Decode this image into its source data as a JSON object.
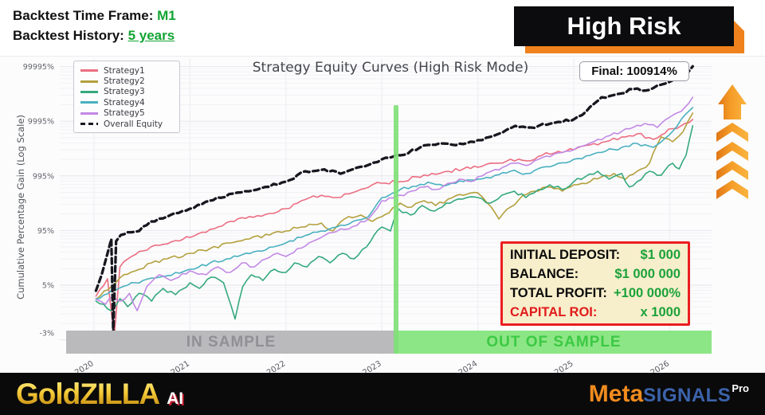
{
  "header": {
    "timeframe_label": "Backtest Time Frame:",
    "timeframe_value": "M1",
    "history_label": "Backtest History:",
    "history_value": "5 years"
  },
  "banner": {
    "text": "High Risk"
  },
  "annotation": {
    "final_label": "Final: 100914%"
  },
  "bands": {
    "in_sample": "IN SAMPLE",
    "out_sample": "OUT OF SAMPLE"
  },
  "info_box": {
    "rows": [
      {
        "label": "INITIAL DEPOSIT:",
        "value": "$1 000",
        "label_style": "black"
      },
      {
        "label": "BALANCE:",
        "value": "$1 000 000",
        "label_style": "black"
      },
      {
        "label": "TOTAL PROFIT:",
        "value": "+100 000%",
        "label_style": "black"
      },
      {
        "label": "CAPITAL ROI:",
        "value": "x 1000",
        "label_style": "red"
      }
    ]
  },
  "footer": {
    "brand_gold": "GoldZILLA",
    "brand_ai": "AI",
    "meta_part1": "Meta",
    "meta_part2": "SIGNALS",
    "meta_part3": "Pro"
  },
  "colors": {
    "accent_orange": "#ef821c",
    "accent_green": "#12a433",
    "band_green": "#8de685",
    "band_gray": "#bababd",
    "info_border_red": "#ea1d22",
    "info_bg_cream": "#f7eecb"
  },
  "chart_data": {
    "type": "line",
    "title": "Strategy Equity Curves (High Risk Mode)",
    "ylabel": "Cumulative Percentage Gain (Log Scale)",
    "xlabel": "",
    "grid": true,
    "legend_position": "top-left",
    "x_range": [
      2019.65,
      2026.45
    ],
    "x_ticks": [
      2020,
      2021,
      2022,
      2023,
      2024,
      2025,
      2026
    ],
    "y_scale": "log(pct_gain + 5)",
    "y_ticks": [
      {
        "label": "99995%",
        "value": 99995
      },
      {
        "label": "9995%",
        "value": 9995
      },
      {
        "label": "995%",
        "value": 995
      },
      {
        "label": "95%",
        "value": 95
      },
      {
        "label": "5%",
        "value": 5
      },
      {
        "label": "-3%",
        "value": -3
      }
    ],
    "sample_split_year": 2023.15,
    "final_value_pct": 100914,
    "series": [
      {
        "name": "Strategy1",
        "color": "#ec6e81",
        "dash": false,
        "points": [
          [
            2020.02,
            1.3
          ],
          [
            2020.14,
            8.1
          ],
          [
            2020.21,
            -3.9
          ],
          [
            2020.27,
            16.6
          ],
          [
            2020.39,
            28.5
          ],
          [
            2020.51,
            37.4
          ],
          [
            2020.68,
            48.6
          ],
          [
            2020.85,
            60.5
          ],
          [
            2021,
            70
          ],
          [
            2021.21,
            100
          ],
          [
            2021.42,
            142
          ],
          [
            2021.62,
            175
          ],
          [
            2021.83,
            200
          ],
          [
            2022,
            246
          ],
          [
            2022.16,
            346
          ],
          [
            2022.37,
            438
          ],
          [
            2022.53,
            396
          ],
          [
            2022.74,
            520
          ],
          [
            2022.9,
            682
          ],
          [
            2023,
            730
          ],
          [
            2023.19,
            780
          ],
          [
            2023.36,
            960
          ],
          [
            2023.52,
            1100
          ],
          [
            2023.69,
            1210
          ],
          [
            2023.85,
            1340
          ],
          [
            2024,
            1430
          ],
          [
            2024.18,
            1700
          ],
          [
            2024.34,
            2010
          ],
          [
            2024.51,
            1880
          ],
          [
            2024.67,
            2370
          ],
          [
            2024.84,
            2810
          ],
          [
            2025,
            3000
          ],
          [
            2025.17,
            3680
          ],
          [
            2025.33,
            4210
          ],
          [
            2025.5,
            5150
          ],
          [
            2025.66,
            5890
          ],
          [
            2025.83,
            4650
          ],
          [
            2025.99,
            7200
          ],
          [
            2026.12,
            8240
          ],
          [
            2026.24,
            10800
          ]
        ]
      },
      {
        "name": "Strategy2",
        "color": "#b3a03d",
        "dash": false,
        "points": [
          [
            2020.03,
            0.65
          ],
          [
            2020.18,
            4.4
          ],
          [
            2020.31,
            10.5
          ],
          [
            2020.43,
            13.3
          ],
          [
            2020.6,
            20.6
          ],
          [
            2020.76,
            25.3
          ],
          [
            2021,
            33.3
          ],
          [
            2021.21,
            41.8
          ],
          [
            2021.42,
            54.2
          ],
          [
            2021.62,
            65
          ],
          [
            2021.83,
            77.8
          ],
          [
            2022,
            93
          ],
          [
            2022.16,
            111
          ],
          [
            2022.37,
            132
          ],
          [
            2022.49,
            93
          ],
          [
            2022.61,
            157
          ],
          [
            2022.78,
            187
          ],
          [
            2022.9,
            142
          ],
          [
            2023,
            175
          ],
          [
            2023.19,
            312
          ],
          [
            2023.31,
            263
          ],
          [
            2023.44,
            346
          ],
          [
            2023.56,
            282
          ],
          [
            2023.69,
            370
          ],
          [
            2023.85,
            438
          ],
          [
            2024,
            485
          ],
          [
            2024.1,
            312
          ],
          [
            2024.22,
            157
          ],
          [
            2024.34,
            263
          ],
          [
            2024.47,
            438
          ],
          [
            2024.59,
            520
          ],
          [
            2024.76,
            620
          ],
          [
            2024.88,
            520
          ],
          [
            2025,
            682
          ],
          [
            2025.17,
            780
          ],
          [
            2025.29,
            960
          ],
          [
            2025.42,
            1100
          ],
          [
            2025.54,
            865
          ],
          [
            2025.66,
            1210
          ],
          [
            2025.79,
            1700
          ],
          [
            2025.91,
            5150
          ],
          [
            2026.03,
            4210
          ],
          [
            2026.14,
            6510
          ],
          [
            2026.24,
            14100
          ]
        ]
      },
      {
        "name": "Strategy3",
        "color": "#35a97c",
        "dash": false,
        "points": [
          [
            2020.02,
            0.11
          ],
          [
            2020.18,
            -1.59
          ],
          [
            2020.27,
            0.65
          ],
          [
            2020.35,
            -0.96
          ],
          [
            2020.47,
            2.1
          ],
          [
            2020.6,
            0.11
          ],
          [
            2020.72,
            3.7
          ],
          [
            2020.85,
            1.7
          ],
          [
            2021,
            6.1
          ],
          [
            2021.1,
            3.7
          ],
          [
            2021.22,
            9
          ],
          [
            2021.35,
            6.1
          ],
          [
            2021.47,
            -2.6
          ],
          [
            2021.55,
            4.4
          ],
          [
            2021.64,
            10.5
          ],
          [
            2021.76,
            7.2
          ],
          [
            2021.88,
            14.6
          ],
          [
            2022,
            12.1
          ],
          [
            2022.09,
            20.6
          ],
          [
            2022.22,
            16.6
          ],
          [
            2022.34,
            28.5
          ],
          [
            2022.46,
            20.6
          ],
          [
            2022.59,
            33.3
          ],
          [
            2022.71,
            25.3
          ],
          [
            2022.84,
            45.1
          ],
          [
            2022.92,
            77.8
          ],
          [
            2023,
            111
          ],
          [
            2023.09,
            93
          ],
          [
            2023.17,
            246
          ],
          [
            2023.3,
            187
          ],
          [
            2023.42,
            282
          ],
          [
            2023.55,
            222
          ],
          [
            2023.67,
            312
          ],
          [
            2023.84,
            370
          ],
          [
            2024,
            396
          ],
          [
            2024.13,
            312
          ],
          [
            2024.25,
            438
          ],
          [
            2024.38,
            520
          ],
          [
            2024.5,
            396
          ],
          [
            2024.63,
            557
          ],
          [
            2024.75,
            682
          ],
          [
            2024.88,
            557
          ],
          [
            2025,
            780
          ],
          [
            2025.12,
            960
          ],
          [
            2025.25,
            1210
          ],
          [
            2025.37,
            865
          ],
          [
            2025.5,
            1100
          ],
          [
            2025.58,
            620
          ],
          [
            2025.66,
            780
          ],
          [
            2025.79,
            1210
          ],
          [
            2025.91,
            1020
          ],
          [
            2026.03,
            1700
          ],
          [
            2026.1,
            1340
          ],
          [
            2026.17,
            2370
          ],
          [
            2026.24,
            8240
          ]
        ]
      },
      {
        "name": "Strategy4",
        "color": "#49b0bf",
        "dash": false,
        "points": [
          [
            2020.02,
            0.65
          ],
          [
            2020.18,
            2.9
          ],
          [
            2020.35,
            5
          ],
          [
            2020.51,
            7.2
          ],
          [
            2020.68,
            9
          ],
          [
            2020.85,
            12.1
          ],
          [
            2021,
            14.6
          ],
          [
            2021.21,
            20.6
          ],
          [
            2021.38,
            25.3
          ],
          [
            2021.54,
            30.8
          ],
          [
            2021.71,
            37.4
          ],
          [
            2021.87,
            45.1
          ],
          [
            2022,
            54.2
          ],
          [
            2022.16,
            70
          ],
          [
            2022.37,
            93
          ],
          [
            2022.53,
            111
          ],
          [
            2022.7,
            142
          ],
          [
            2022.86,
            175
          ],
          [
            2023,
            396
          ],
          [
            2023.19,
            557
          ],
          [
            2023.36,
            637
          ],
          [
            2023.52,
            730
          ],
          [
            2023.69,
            682
          ],
          [
            2023.85,
            780
          ],
          [
            2024,
            865
          ],
          [
            2024.18,
            1020
          ],
          [
            2024.34,
            1210
          ],
          [
            2024.51,
            1100
          ],
          [
            2024.67,
            1430
          ],
          [
            2024.84,
            1700
          ],
          [
            2025,
            2010
          ],
          [
            2025.17,
            2370
          ],
          [
            2025.33,
            2810
          ],
          [
            2025.5,
            3320
          ],
          [
            2025.66,
            3930
          ],
          [
            2025.83,
            3320
          ],
          [
            2025.99,
            5500
          ],
          [
            2026.12,
            10800
          ],
          [
            2026.24,
            17800
          ]
        ]
      },
      {
        "name": "Strategy5",
        "color": "#c289e4",
        "dash": false,
        "points": [
          [
            2020.02,
            0.5
          ],
          [
            2020.12,
            -0.53
          ],
          [
            2020.2,
            1.3
          ],
          [
            2020.28,
            0.11
          ],
          [
            2020.37,
            2.1
          ],
          [
            2020.45,
            -1.59
          ],
          [
            2020.55,
            4.4
          ],
          [
            2020.68,
            10.5
          ],
          [
            2020.8,
            7.2
          ],
          [
            2021,
            13.3
          ],
          [
            2021.17,
            10.5
          ],
          [
            2021.29,
            16.6
          ],
          [
            2021.42,
            12.1
          ],
          [
            2021.54,
            20.6
          ],
          [
            2021.67,
            16.6
          ],
          [
            2021.79,
            25.3
          ],
          [
            2021.91,
            33.3
          ],
          [
            2022,
            28.5
          ],
          [
            2022.12,
            41.8
          ],
          [
            2022.24,
            54.2
          ],
          [
            2022.37,
            70
          ],
          [
            2022.49,
            86.6
          ],
          [
            2022.61,
            100
          ],
          [
            2022.74,
            119
          ],
          [
            2022.86,
            157
          ],
          [
            2023,
            346
          ],
          [
            2023.19,
            438
          ],
          [
            2023.31,
            520
          ],
          [
            2023.44,
            620
          ],
          [
            2023.56,
            557
          ],
          [
            2023.69,
            730
          ],
          [
            2023.81,
            865
          ],
          [
            2023.93,
            780
          ],
          [
            2024,
            960
          ],
          [
            2024.14,
            1210
          ],
          [
            2024.26,
            1430
          ],
          [
            2024.38,
            1700
          ],
          [
            2024.51,
            1540
          ],
          [
            2024.67,
            2150
          ],
          [
            2024.84,
            2630
          ],
          [
            2025,
            3000
          ],
          [
            2025.13,
            3680
          ],
          [
            2025.25,
            4650
          ],
          [
            2025.38,
            5500
          ],
          [
            2025.5,
            6510
          ],
          [
            2025.62,
            7700
          ],
          [
            2025.74,
            9100
          ],
          [
            2025.87,
            7700
          ],
          [
            2025.99,
            11500
          ],
          [
            2026.12,
            15100
          ],
          [
            2026.24,
            27500
          ]
        ]
      },
      {
        "name": "Overall Equity",
        "color": "#17171f",
        "dash": true,
        "points": [
          [
            2020.02,
            2.9
          ],
          [
            2020.08,
            10.5
          ],
          [
            2020.14,
            33
          ],
          [
            2020.18,
            65
          ],
          [
            2020.2,
            -3.7
          ],
          [
            2020.23,
            59
          ],
          [
            2020.28,
            78
          ],
          [
            2020.35,
            88
          ],
          [
            2020.47,
            93
          ],
          [
            2020.59,
            141
          ],
          [
            2020.76,
            174
          ],
          [
            2021,
            246
          ],
          [
            2021.2,
            345
          ],
          [
            2021.45,
            469
          ],
          [
            2021.7,
            556
          ],
          [
            2022,
            780
          ],
          [
            2022.2,
            1208
          ],
          [
            2022.4,
            1310
          ],
          [
            2022.57,
            1091
          ],
          [
            2022.78,
            1460
          ],
          [
            2023,
            2004
          ],
          [
            2023.19,
            2370
          ],
          [
            2023.4,
            3320
          ],
          [
            2023.6,
            3930
          ],
          [
            2023.77,
            3640
          ],
          [
            2024,
            4500
          ],
          [
            2024.22,
            5890
          ],
          [
            2024.39,
            8220
          ],
          [
            2024.55,
            7700
          ],
          [
            2024.76,
            9070
          ],
          [
            2025,
            10800
          ],
          [
            2025.13,
            15100
          ],
          [
            2025.29,
            27500
          ],
          [
            2025.46,
            31500
          ],
          [
            2025.62,
            38600
          ],
          [
            2025.79,
            37500
          ],
          [
            2025.95,
            48700
          ],
          [
            2026.08,
            61700
          ],
          [
            2026.16,
            68000
          ],
          [
            2026.24,
            100914
          ]
        ]
      }
    ]
  }
}
